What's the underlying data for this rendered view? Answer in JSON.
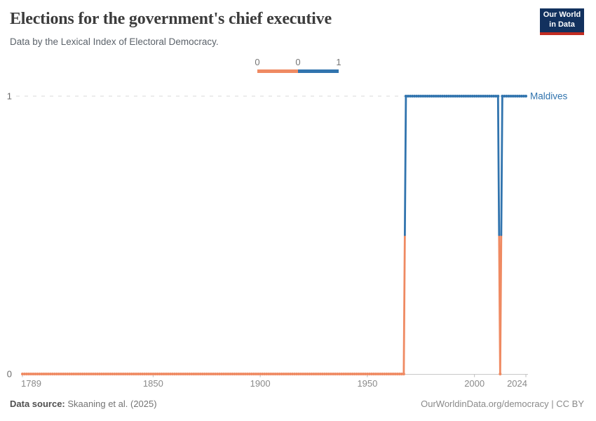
{
  "header": {
    "title": "Elections for the government's chief executive",
    "subtitle": "Data by the Lexical Index of Electoral Democracy."
  },
  "logo": {
    "line1": "Our World",
    "line2": "in Data"
  },
  "legend": {
    "tick_labels": [
      "0",
      "0",
      "1"
    ],
    "segment_colors": [
      "#ef8a62",
      "#3174ae"
    ]
  },
  "chart_data": {
    "type": "line",
    "title": "Elections for the government's chief executive",
    "subtitle": "Data by the Lexical Index of Electoral Democracy.",
    "entity": "Maldives",
    "x": {
      "min": 1789,
      "max": 2024,
      "ticks": [
        1789,
        1850,
        1900,
        1950,
        2000,
        2024
      ]
    },
    "y": {
      "min": 0,
      "max": 1,
      "ticks": [
        0,
        1
      ],
      "grid_values": [
        1
      ]
    },
    "value_colors": {
      "0": "#ef8a62",
      "1": "#3174ae"
    },
    "series": [
      {
        "name": "Maldives",
        "steps": [
          {
            "from": 1789,
            "to": 1967,
            "value": 0
          },
          {
            "from": 1968,
            "to": 2011,
            "value": 1
          },
          {
            "from": 2012,
            "to": 2012,
            "value": 0
          },
          {
            "from": 2013,
            "to": 2024,
            "value": 1
          }
        ]
      }
    ],
    "legend_position": "top-center",
    "grid": "dashed horizontal line at y = 1"
  },
  "footer": {
    "source_label": "Data source:",
    "source": "Skaaning et al. (2025)",
    "attribution": "OurWorldinData.org/democracy | CC BY"
  }
}
